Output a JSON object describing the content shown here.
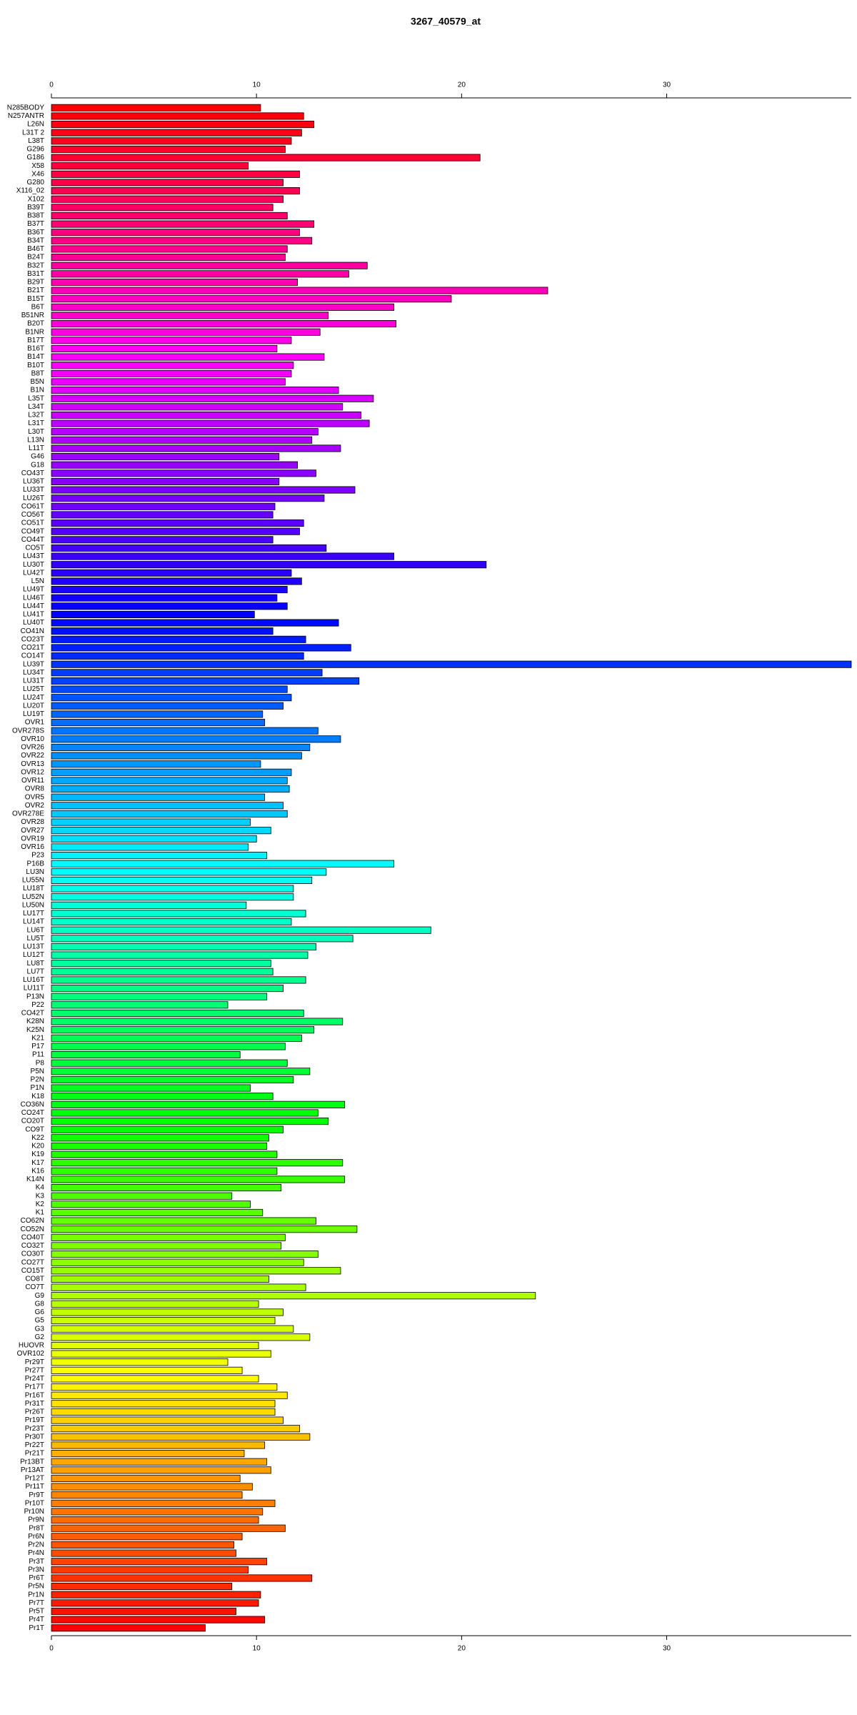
{
  "chart_data": {
    "type": "barh",
    "title": "3267_40579_at",
    "categories": [
      "N285BODY",
      "N257ANTR",
      "L26N",
      "L31T 2",
      "L38T",
      "G296",
      "G186",
      "X58",
      "X46",
      "G280",
      "X116_02",
      "X102",
      "B39T",
      "B38T",
      "B37T",
      "B36T",
      "B34T",
      "B46T",
      "B24T",
      "B32T",
      "B31T",
      "B29T",
      "B21T",
      "B15T",
      "B6T",
      "B51NR",
      "B20T",
      "B1NR",
      "B17T",
      "B16T",
      "B14T",
      "B10T",
      "B8T",
      "B5N",
      "B1N",
      "L35T",
      "L34T",
      "L32T",
      "L31T",
      "L30T",
      "L13N",
      "L11T",
      "G46",
      "G18",
      "CO43T",
      "LU36T",
      "LU33T",
      "LU26T",
      "CO61T",
      "CO56T",
      "CO51T",
      "CO49T",
      "CO44T",
      "CO5T",
      "LU43T",
      "LU30T",
      "LU42T",
      "L5N",
      "LU49T",
      "LU46T",
      "LU44T",
      "LU41T",
      "LU40T",
      "CO41N",
      "CO23T",
      "CO21T",
      "CO14T",
      "LU39T",
      "LU34T",
      "LU31T",
      "LU25T",
      "LU24T",
      "LU20T",
      "LU19T",
      "OVR1",
      "OVR278S",
      "OVR10",
      "OVR26",
      "OVR22",
      "OVR13",
      "OVR12",
      "OVR11",
      "OVR8",
      "OVR5",
      "OVR2",
      "OVR278E",
      "OVR28",
      "OVR27",
      "OVR19",
      "OVR16",
      "P23",
      "P16B",
      "LU3N",
      "LU55N",
      "LU18T",
      "LU52N",
      "LU50N",
      "LU17T",
      "LU14T",
      "LU6T",
      "LU5T",
      "LU13T",
      "LU12T",
      "LU8T",
      "LU7T",
      "LU16T",
      "LU11T",
      "P13N",
      "P22",
      "CO42T",
      "K28N",
      "K25N",
      "K21",
      "P17",
      "P11",
      "P8",
      "P5N",
      "P2N",
      "P1N",
      "K18",
      "CO36N",
      "CO24T",
      "CO20T",
      "CO9T",
      "K22",
      "K20",
      "K19",
      "K17",
      "K16",
      "K14N",
      "K4",
      "K3",
      "K2",
      "K1",
      "CO62N",
      "CO52N",
      "CO40T",
      "CO32T",
      "CO30T",
      "CO27T",
      "CO15T",
      "CO8T",
      "CO7T",
      "G9",
      "G8",
      "G6",
      "G5",
      "G3",
      "G2",
      "HUOVR",
      "OVR102",
      "Pr29T",
      "Pr27T",
      "Pr24T",
      "Pr17T",
      "Pr16T",
      "Pr31T",
      "Pr26T",
      "Pr19T",
      "Pr23T",
      "Pr30T",
      "Pr22T",
      "Pr21T",
      "Pr13BT",
      "Pr13AT",
      "Pr12T",
      "Pr11T",
      "Pr9T",
      "Pr10T",
      "Pr10N",
      "Pr9N",
      "Pr8T",
      "Pr6N",
      "Pr2N",
      "Pr4N",
      "Pr3T",
      "Pr3N",
      "Pr6T",
      "Pr5N",
      "Pr1N",
      "Pr7T",
      "Pr5T",
      "Pr4T",
      "Pr1T"
    ],
    "values": [
      10.2,
      12.3,
      12.8,
      12.2,
      11.7,
      11.4,
      20.9,
      9.6,
      12.1,
      11.3,
      12.1,
      11.3,
      10.8,
      11.5,
      12.8,
      12.1,
      12.7,
      11.5,
      11.4,
      15.4,
      14.5,
      12.0,
      24.2,
      19.5,
      16.7,
      13.5,
      16.8,
      13.1,
      11.7,
      11.0,
      13.3,
      11.8,
      11.7,
      11.4,
      14.0,
      15.7,
      14.2,
      15.1,
      15.5,
      13.0,
      12.7,
      14.1,
      11.1,
      12.0,
      12.9,
      11.1,
      14.8,
      13.3,
      10.9,
      10.8,
      12.3,
      12.1,
      10.8,
      13.4,
      16.7,
      21.2,
      11.7,
      12.2,
      11.5,
      11.0,
      11.5,
      9.9,
      14.0,
      10.8,
      12.4,
      14.6,
      12.3,
      39.0,
      13.2,
      15.0,
      11.5,
      11.7,
      11.3,
      10.3,
      10.4,
      13.0,
      14.1,
      12.6,
      12.2,
      10.2,
      11.7,
      11.5,
      11.6,
      10.4,
      11.3,
      11.5,
      9.7,
      10.7,
      10.0,
      9.6,
      10.5,
      16.7,
      13.4,
      12.7,
      11.8,
      11.8,
      9.5,
      12.4,
      11.7,
      18.5,
      14.7,
      12.9,
      12.5,
      10.7,
      10.8,
      12.4,
      11.3,
      10.5,
      8.6,
      12.3,
      14.2,
      12.8,
      12.2,
      11.4,
      9.2,
      11.5,
      12.6,
      11.8,
      9.7,
      10.8,
      14.3,
      13.0,
      13.5,
      11.3,
      10.6,
      10.5,
      11.0,
      14.2,
      11.0,
      14.3,
      11.2,
      8.8,
      9.7,
      10.3,
      12.9,
      14.9,
      11.4,
      11.2,
      13.0,
      12.3,
      14.1,
      10.6,
      12.4,
      23.6,
      10.1,
      11.3,
      10.9,
      11.8,
      12.6,
      10.1,
      10.7,
      8.6,
      9.3,
      10.1,
      11.0,
      11.5,
      10.9,
      10.9,
      11.3,
      12.1,
      12.6,
      10.4,
      9.4,
      10.5,
      10.7,
      9.2,
      9.8,
      9.3,
      10.9,
      10.3,
      10.1,
      11.4,
      9.3,
      8.9,
      9.0,
      10.5,
      9.6,
      12.7,
      8.8,
      10.2,
      10.1,
      9.0,
      10.4,
      7.5
    ],
    "color_gradient": [
      "#ff0000",
      "#ff00ff",
      "#0000ff",
      "#00ffff",
      "#00ff00",
      "#ffff00",
      "#ff0000"
    ],
    "xlim": [
      0,
      39
    ],
    "xticks": [
      0,
      10,
      20,
      30
    ]
  }
}
